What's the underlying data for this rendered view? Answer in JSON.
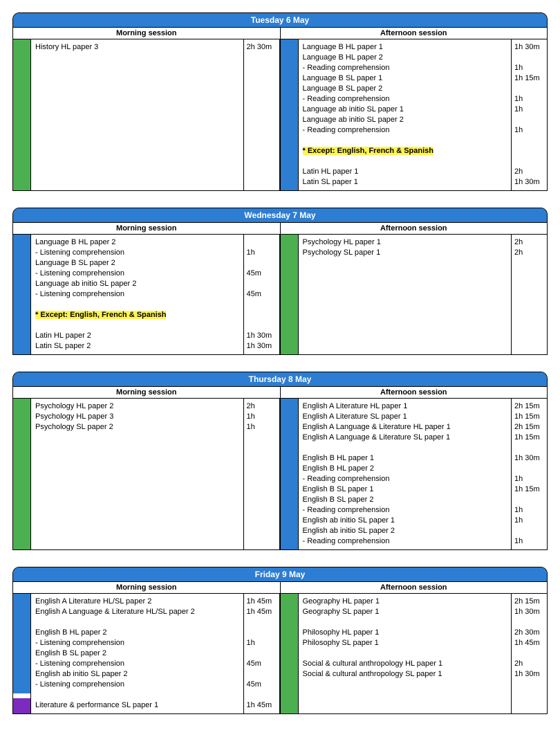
{
  "colors": {
    "headerBg": "#2d7dd2",
    "green": "#4caf50",
    "blue": "#2d7dd2",
    "purple": "#7b2cbf",
    "highlight": "#fff450"
  },
  "labels": {
    "morning": "Morning session",
    "afternoon": "Afternoon session"
  },
  "days": [
    {
      "title": "Tuesday 6 May",
      "morning": {
        "colorSegs": [
          {
            "color": "#4caf50",
            "flex": 1
          }
        ],
        "rows": [
          {
            "text": "History HL paper 3",
            "dur": "2h 30m"
          }
        ]
      },
      "afternoon": {
        "colorSegs": [
          {
            "color": "#2d7dd2",
            "flex": 1
          }
        ],
        "rows": [
          {
            "text": "Language B HL paper 1",
            "dur": "1h 30m"
          },
          {
            "text": "Language B HL paper 2",
            "dur": ""
          },
          {
            "text": "- Reading comprehension",
            "dur": "1h"
          },
          {
            "text": "Language B SL paper 1",
            "dur": "1h 15m"
          },
          {
            "text": "Language B SL paper 2",
            "dur": ""
          },
          {
            "text": "- Reading comprehension",
            "dur": "1h"
          },
          {
            "text": "Language ab initio SL paper 1",
            "dur": "1h"
          },
          {
            "text": "Language ab initio SL paper 2",
            "dur": ""
          },
          {
            "text": "- Reading comprehension",
            "dur": "1h"
          },
          {
            "text": "",
            "dur": ""
          },
          {
            "text": "* Except: English, French & Spanish",
            "dur": "",
            "highlight": true
          },
          {
            "text": "",
            "dur": ""
          },
          {
            "text": "Latin HL paper 1",
            "dur": "2h"
          },
          {
            "text": "Latin SL paper 1",
            "dur": "1h 30m"
          }
        ]
      }
    },
    {
      "title": "Wednesday 7 May",
      "morning": {
        "colorSegs": [
          {
            "color": "#2d7dd2",
            "flex": 1
          }
        ],
        "rows": [
          {
            "text": "Language B HL paper 2",
            "dur": ""
          },
          {
            "text": "- Listening comprehension",
            "dur": "1h"
          },
          {
            "text": "Language B SL paper 2",
            "dur": ""
          },
          {
            "text": "- Listening comprehension",
            "dur": "45m"
          },
          {
            "text": "Language ab initio SL paper 2",
            "dur": ""
          },
          {
            "text": "- Listening comprehension",
            "dur": "45m"
          },
          {
            "text": "",
            "dur": ""
          },
          {
            "text": "* Except: English, French & Spanish",
            "dur": "",
            "highlight": true
          },
          {
            "text": "",
            "dur": ""
          },
          {
            "text": "Latin HL paper 2",
            "dur": "1h 30m"
          },
          {
            "text": "Latin SL paper 2",
            "dur": "1h 30m"
          }
        ]
      },
      "afternoon": {
        "colorSegs": [
          {
            "color": "#4caf50",
            "flex": 1
          }
        ],
        "rows": [
          {
            "text": "Psychology HL paper 1",
            "dur": "2h"
          },
          {
            "text": "Psychology SL paper 1",
            "dur": "2h"
          }
        ]
      }
    },
    {
      "title": "Thursday 8 May",
      "morning": {
        "colorSegs": [
          {
            "color": "#4caf50",
            "flex": 1
          }
        ],
        "rows": [
          {
            "text": "Psychology HL paper 2",
            "dur": "2h"
          },
          {
            "text": "Psychology HL paper 3",
            "dur": "1h"
          },
          {
            "text": "Psychology SL paper 2",
            "dur": "1h"
          }
        ]
      },
      "afternoon": {
        "colorSegs": [
          {
            "color": "#2d7dd2",
            "flex": 1
          }
        ],
        "rows": [
          {
            "text": "English A Literature HL paper 1",
            "dur": "2h 15m"
          },
          {
            "text": "English A Literature SL paper 1",
            "dur": "1h 15m"
          },
          {
            "text": "English A Language & Literature HL paper 1",
            "dur": "2h 15m"
          },
          {
            "text": "English A Language & Literature SL paper 1",
            "dur": "1h 15m"
          },
          {
            "text": "",
            "dur": ""
          },
          {
            "text": "English B HL paper 1",
            "dur": "1h 30m"
          },
          {
            "text": "English B HL paper 2",
            "dur": ""
          },
          {
            "text": "- Reading comprehension",
            "dur": "1h"
          },
          {
            "text": "English B SL paper 1",
            "dur": "1h 15m"
          },
          {
            "text": "English B SL paper 2",
            "dur": ""
          },
          {
            "text": "- Reading comprehension",
            "dur": "1h"
          },
          {
            "text": "English ab initio SL paper 1",
            "dur": "1h"
          },
          {
            "text": "English ab initio SL paper 2",
            "dur": ""
          },
          {
            "text": "- Reading comprehension",
            "dur": "1h"
          }
        ]
      }
    },
    {
      "title": "Friday 9 May",
      "morning": {
        "colorSegs": [
          {
            "color": "#2d7dd2",
            "flex": 8
          },
          {
            "color": "#ffffff",
            "flex": 0.4
          },
          {
            "color": "#7b2cbf",
            "flex": 1.2
          }
        ],
        "rows": [
          {
            "text": "English A Literature HL/SL paper 2",
            "dur": "1h 45m"
          },
          {
            "text": "English A Language & Literature HL/SL paper 2",
            "dur": "1h 45m"
          },
          {
            "text": "",
            "dur": ""
          },
          {
            "text": "English B HL paper 2",
            "dur": ""
          },
          {
            "text": "- Listening comprehension",
            "dur": "1h"
          },
          {
            "text": "English B SL paper 2",
            "dur": ""
          },
          {
            "text": "- Listening comprehension",
            "dur": "45m"
          },
          {
            "text": "English ab initio SL paper 2",
            "dur": ""
          },
          {
            "text": "- Listening comprehension",
            "dur": "45m"
          },
          {
            "text": "",
            "dur": ""
          },
          {
            "text": "Literature & performance SL paper 1",
            "dur": "1h 45m"
          }
        ]
      },
      "afternoon": {
        "colorSegs": [
          {
            "color": "#4caf50",
            "flex": 1
          }
        ],
        "rows": [
          {
            "text": "Geography HL paper 1",
            "dur": "2h 15m"
          },
          {
            "text": "Geography SL paper 1",
            "dur": "1h 30m"
          },
          {
            "text": "",
            "dur": ""
          },
          {
            "text": "Philosophy HL paper 1",
            "dur": "2h 30m"
          },
          {
            "text": "Philosophy SL paper 1",
            "dur": "1h 45m"
          },
          {
            "text": "",
            "dur": ""
          },
          {
            "text": "Social & cultural anthropology HL paper 1",
            "dur": "2h"
          },
          {
            "text": "Social & cultural anthropology SL paper 1",
            "dur": "1h 30m"
          }
        ]
      }
    }
  ]
}
